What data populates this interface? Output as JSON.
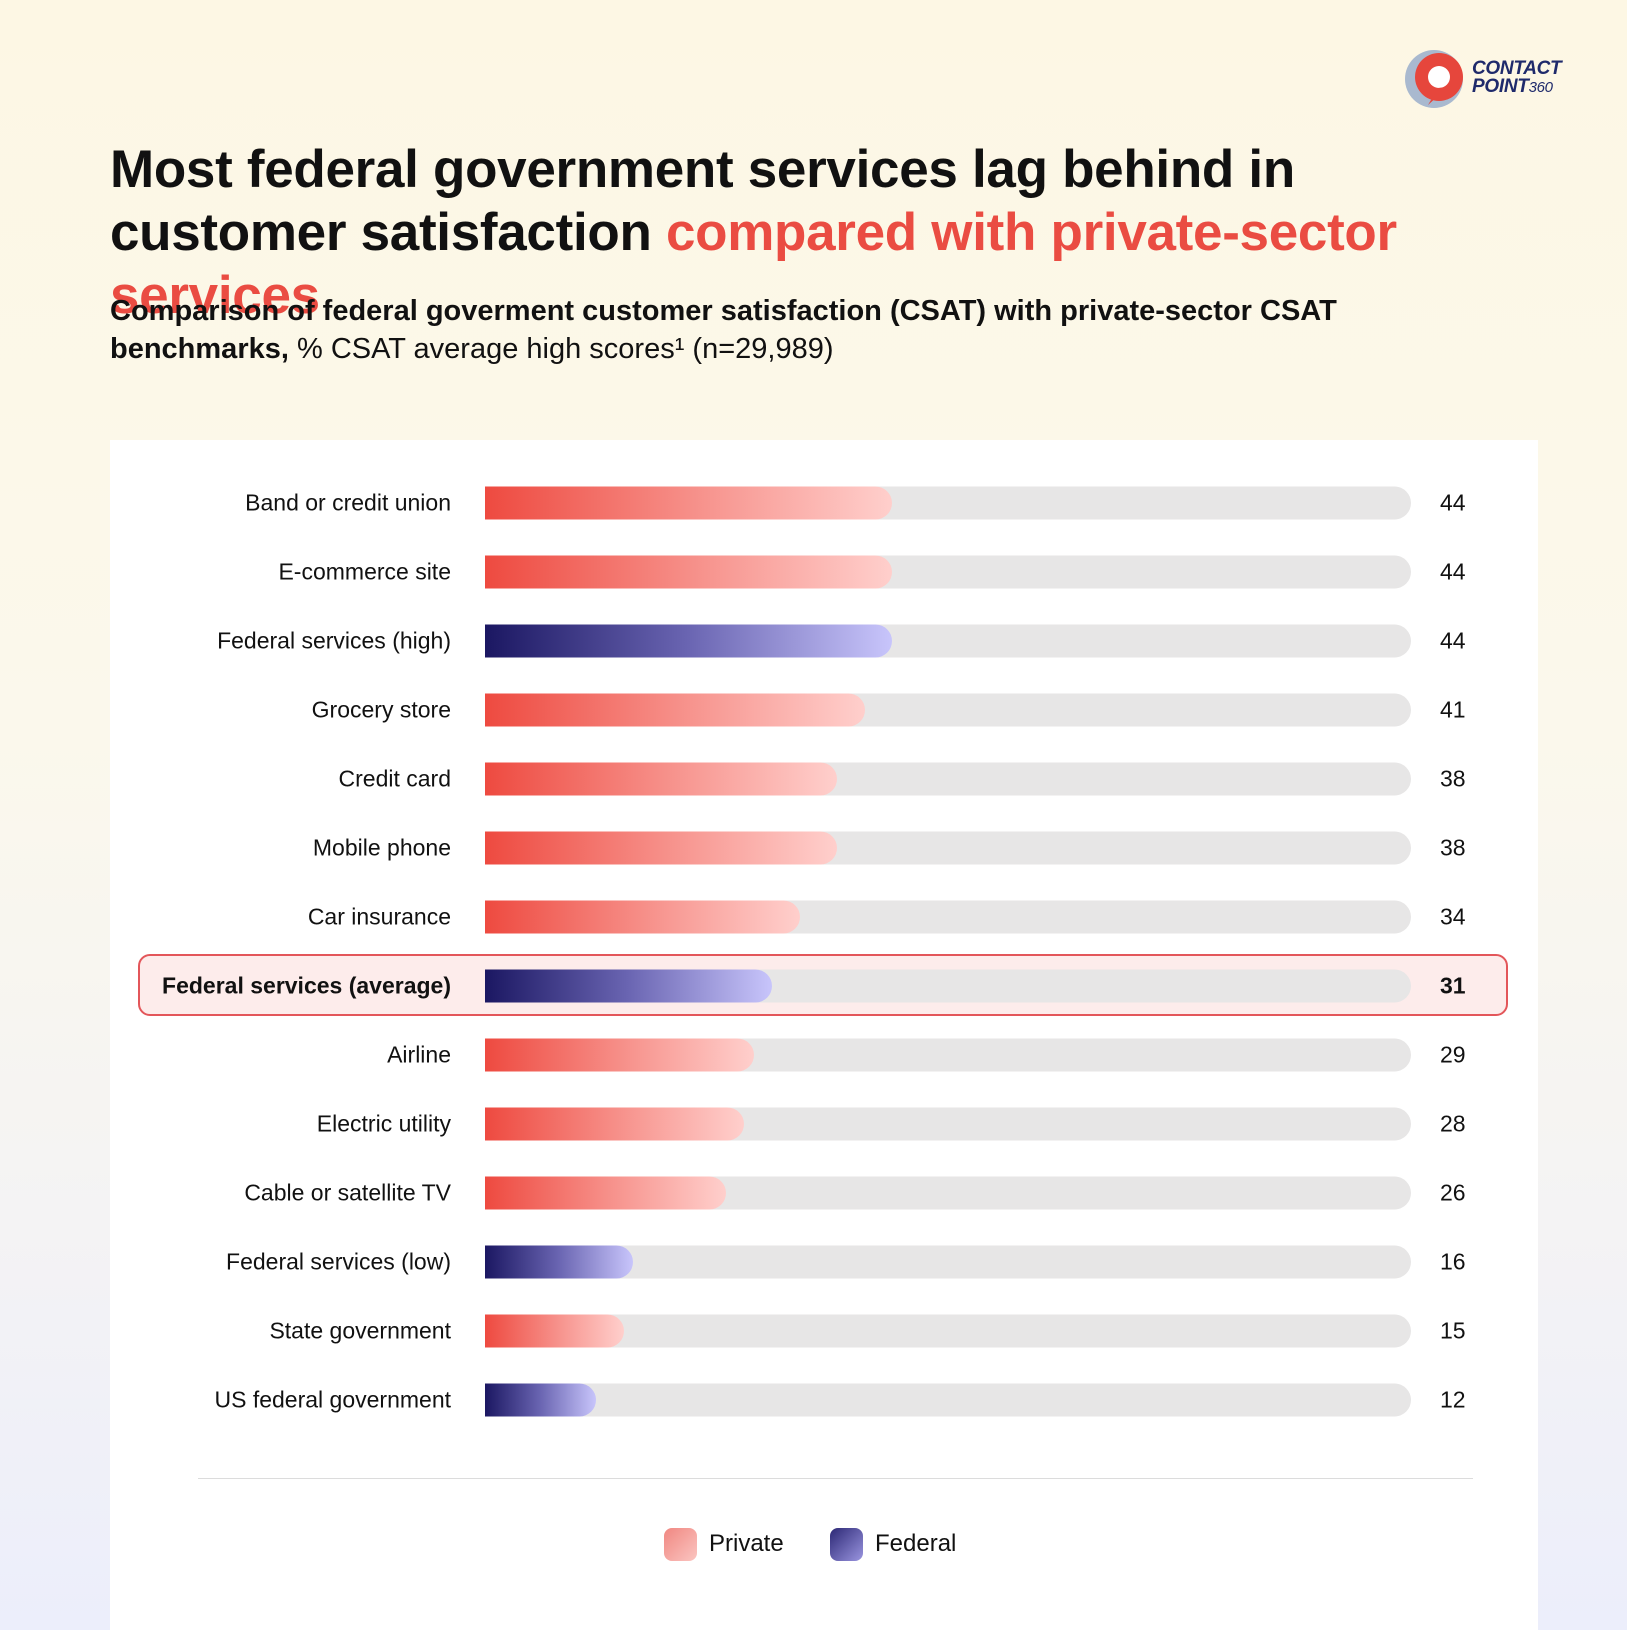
{
  "brand": {
    "line1": "CONTACT",
    "line2": "POINT",
    "line2_suffix": "360"
  },
  "headline": {
    "text": "Most federal government services lag behind in customer satisfaction",
    "accent": "compared with private-sector services"
  },
  "subtitle": {
    "bold": "Comparison of federal goverment customer satisfaction (CSAT) with private-sector CSAT benchmarks,",
    "regular": "% CSAT average high scores¹ (n=29,989)"
  },
  "colors": {
    "private": "#ee4a40",
    "federal": "#1b1762",
    "accent": "#ea4c42",
    "highlight_border": "#e3565a",
    "track": "#e7e6e6"
  },
  "chart_data": {
    "type": "bar",
    "orientation": "horizontal",
    "title": "Most federal government services lag behind in customer satisfaction compared with private-sector services",
    "subtitle": "Comparison of federal goverment customer satisfaction (CSAT) with private-sector CSAT benchmarks, % CSAT average high scores¹ (n=29,989)",
    "xlim": [
      0,
      100
    ],
    "grid": false,
    "legend_position": "bottom-center",
    "legend": [
      {
        "label": "Private",
        "key": "private"
      },
      {
        "label": "Federal",
        "key": "federal"
      }
    ],
    "categories": [
      "Band or credit union",
      "E-commerce site",
      "Federal services (high)",
      "Grocery store",
      "Credit card",
      "Mobile phone",
      "Car insurance",
      "Federal services (average)",
      "Airline",
      "Electric utility",
      "Cable or satellite TV",
      "Federal services (low)",
      "State government",
      "US federal government"
    ],
    "values": [
      44,
      44,
      44,
      41,
      38,
      38,
      34,
      31,
      29,
      28,
      26,
      16,
      15,
      12
    ],
    "groups": [
      "private",
      "private",
      "federal",
      "private",
      "private",
      "private",
      "private",
      "federal",
      "private",
      "private",
      "private",
      "federal",
      "private",
      "federal"
    ],
    "highlighted": "Federal services (average)"
  }
}
